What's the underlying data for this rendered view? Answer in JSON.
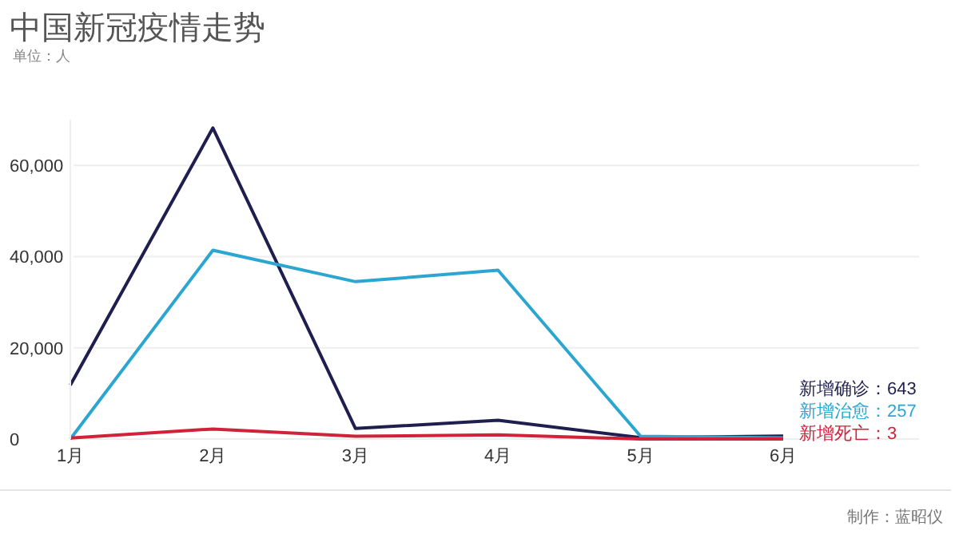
{
  "chart_data": {
    "type": "line",
    "title": "中国新冠疫情走势",
    "subtitle": "单位：人",
    "categories": [
      "1月",
      "2月",
      "3月",
      "4月",
      "5月",
      "6月"
    ],
    "series": [
      {
        "name": "新增确诊：",
        "color": "#1f1f4f",
        "values": [
          11800,
          68200,
          2300,
          4100,
          300,
          643
        ],
        "value_labels": [
          null,
          null,
          null,
          null,
          null,
          "643"
        ]
      },
      {
        "name": "新增治愈：",
        "color": "#2aa6d0",
        "values": [
          0,
          41400,
          34500,
          37000,
          600,
          257
        ],
        "value_labels": [
          null,
          null,
          null,
          null,
          null,
          "257"
        ]
      },
      {
        "name": "新增死亡：",
        "color": "#d0223a",
        "values": [
          200,
          2200,
          600,
          900,
          0,
          3
        ],
        "value_labels": [
          null,
          null,
          null,
          null,
          null,
          "3"
        ]
      }
    ],
    "ylim": [
      0,
      70000
    ],
    "yticks": [
      0,
      {
        "value": 20000,
        "label": "20,000"
      },
      {
        "value": 40000,
        "label": "40,000"
      },
      {
        "value": 60000,
        "label": "60,000"
      }
    ],
    "grid": "y",
    "annotations": [
      "制作：蓝昭仪"
    ]
  }
}
